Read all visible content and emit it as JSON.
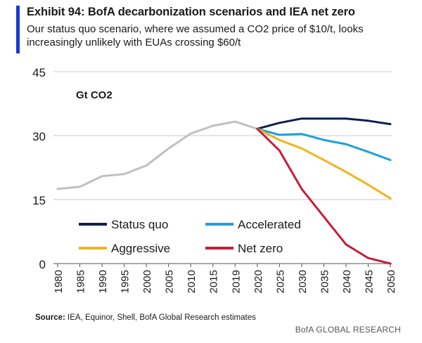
{
  "header": {
    "title": "Exhibit 94: BofA decarbonization scenarios and IEA net zero",
    "subtitle": "Our status quo scenario, where we assumed a CO2 price of $10/t, looks increasingly unlikely with EUAs crossing $60/t",
    "accent_color": "#1a3cc8"
  },
  "footer": {
    "source_label": "Source:",
    "source_text": "IEA, Equinor, Shell, BofA Global Research estimates",
    "brand": "BofA GLOBAL RESEARCH"
  },
  "chart_data": {
    "type": "line",
    "title": "",
    "ylabel": "Gt CO2",
    "xlabel": "",
    "ylim": [
      0,
      45
    ],
    "yticks": [
      0,
      15,
      30,
      45
    ],
    "grid": true,
    "legend_position": "lower-left",
    "categories": [
      "1980",
      "1985",
      "1990",
      "1995",
      "2000",
      "2005",
      "2010",
      "2015",
      "2019",
      "2020",
      "2025",
      "2030",
      "2035",
      "2040",
      "2045",
      "2050"
    ],
    "historical": {
      "color": "#c0c0c0",
      "values": [
        17.5,
        18,
        20.5,
        21,
        23,
        27,
        30.5,
        32.3,
        33.3,
        31.6
      ]
    },
    "series": [
      {
        "name": "Status quo",
        "color": "#0d1f4f",
        "values": [
          null,
          null,
          null,
          null,
          null,
          null,
          null,
          null,
          null,
          31.6,
          33,
          34,
          34,
          34,
          33.5,
          32.7
        ]
      },
      {
        "name": "Accelerated",
        "color": "#1fa0d8",
        "values": [
          null,
          null,
          null,
          null,
          null,
          null,
          null,
          null,
          null,
          31.6,
          30.2,
          30.4,
          29,
          28,
          26.2,
          24.3
        ]
      },
      {
        "name": "Aggressive",
        "color": "#f0b51e",
        "values": [
          null,
          null,
          null,
          null,
          null,
          null,
          null,
          null,
          null,
          31.6,
          29,
          27,
          24.3,
          21.5,
          18.5,
          15.3
        ]
      },
      {
        "name": "Net zero",
        "color": "#c41e3a",
        "values": [
          null,
          null,
          null,
          null,
          null,
          null,
          null,
          null,
          null,
          31.6,
          26.5,
          17.5,
          11,
          4.5,
          1.3,
          0
        ]
      }
    ]
  }
}
